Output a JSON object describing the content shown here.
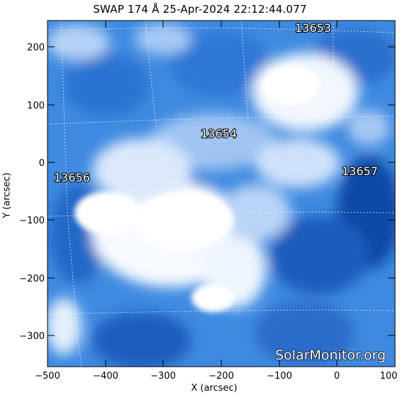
{
  "title": "SWAP 174 Å 25-Apr-2024 22:12:44.077",
  "x_axis": {
    "label": "X (arcsec)",
    "ticks": [
      "−500",
      "−400",
      "−300",
      "−200",
      "−100",
      "0",
      "100"
    ]
  },
  "y_axis": {
    "label": "Y (arcsec)",
    "ticks": [
      "200",
      "100",
      "0",
      "−100",
      "−200",
      "−300"
    ]
  },
  "regions": [
    {
      "id": "13653",
      "label": "13653"
    },
    {
      "id": "13654",
      "label": "13654"
    },
    {
      "id": "13656",
      "label": "13656"
    },
    {
      "id": "13657",
      "label": "13657"
    }
  ],
  "watermark": "SolarMonitor.org",
  "colors": {
    "colormap_dark": "#0b3f8f",
    "colormap_mid": "#3d86df",
    "colormap_light": "#dbe9fb"
  }
}
